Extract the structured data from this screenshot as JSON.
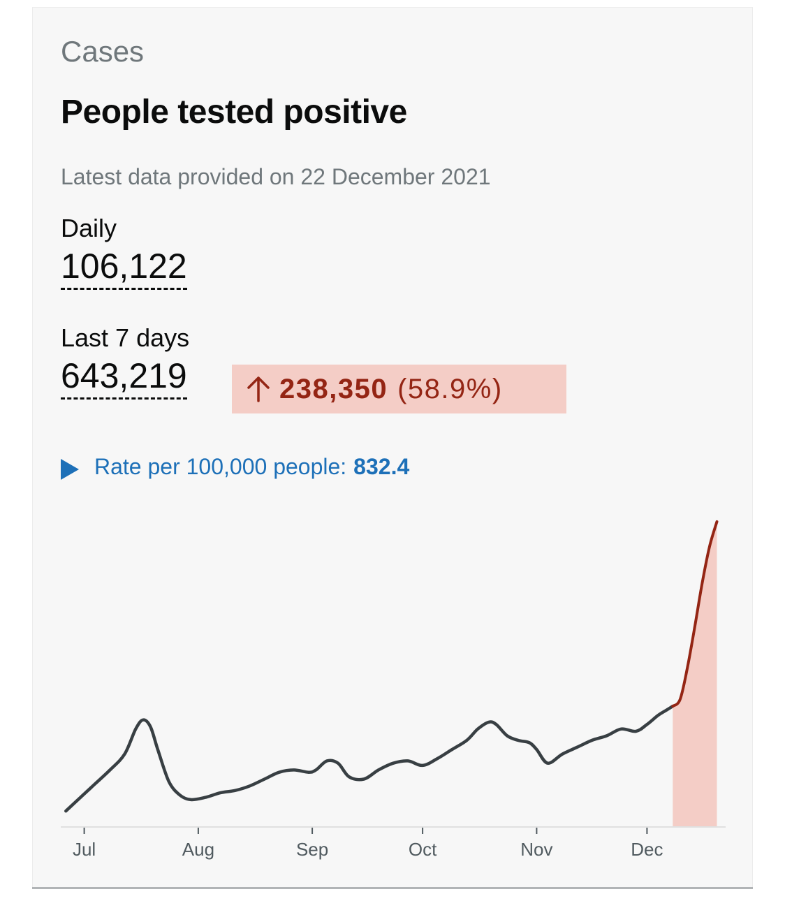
{
  "card": {
    "category": "Cases",
    "title": "People tested positive",
    "latest_update": "Latest data provided on 22 December 2021"
  },
  "metrics": {
    "daily": {
      "label": "Daily",
      "value": "106,122"
    },
    "last7": {
      "label": "Last 7 days",
      "value": "643,219"
    },
    "change": {
      "icon": "arrow-up-icon",
      "amount": "238,350",
      "percent": "(58.9%)",
      "direction": "up",
      "color": "#942514",
      "background": "#f4cdc6"
    }
  },
  "rate": {
    "icon": "disclosure-triangle-icon",
    "label": "Rate per 100,000 people:",
    "value": "832.4",
    "color": "#1d70b8"
  },
  "chart_data": {
    "type": "line",
    "title": "",
    "xlabel": "",
    "ylabel": "",
    "x_ticks": [
      "Jul",
      "Aug",
      "Sep",
      "Oct",
      "Nov",
      "Dec"
    ],
    "grid": false,
    "legend": "none",
    "series": [
      {
        "color": "#383f43",
        "highlight_color": "#942514",
        "highlight_fill": "#f4cdc6",
        "x": [
          "2021-06-26",
          "2021-06-30",
          "2021-07-04",
          "2021-07-08",
          "2021-07-12",
          "2021-07-15",
          "2021-07-17",
          "2021-07-19",
          "2021-07-21",
          "2021-07-24",
          "2021-07-27",
          "2021-07-30",
          "2021-08-03",
          "2021-08-07",
          "2021-08-11",
          "2021-08-15",
          "2021-08-19",
          "2021-08-23",
          "2021-08-27",
          "2021-08-31",
          "2021-09-02",
          "2021-09-05",
          "2021-09-08",
          "2021-09-11",
          "2021-09-15",
          "2021-09-19",
          "2021-09-23",
          "2021-09-27",
          "2021-10-01",
          "2021-10-05",
          "2021-10-09",
          "2021-10-13",
          "2021-10-16",
          "2021-10-19",
          "2021-10-21",
          "2021-10-24",
          "2021-10-27",
          "2021-10-30",
          "2021-11-01",
          "2021-11-04",
          "2021-11-08",
          "2021-11-12",
          "2021-11-16",
          "2021-11-20",
          "2021-11-24",
          "2021-11-28",
          "2021-12-01",
          "2021-12-04",
          "2021-12-06",
          "2021-12-08",
          "2021-12-10",
          "2021-12-12",
          "2021-12-14",
          "2021-12-16",
          "2021-12-18",
          "2021-12-20"
        ],
        "values": [
          7000,
          13000,
          19000,
          25000,
          32000,
          43000,
          47000,
          44000,
          34000,
          20000,
          14000,
          12000,
          13000,
          15000,
          16000,
          18000,
          21000,
          24000,
          25000,
          24000,
          25000,
          29000,
          28000,
          22000,
          21000,
          25000,
          28000,
          29000,
          27000,
          30000,
          34000,
          38000,
          43000,
          46000,
          45000,
          40000,
          38000,
          37000,
          34000,
          28000,
          32000,
          35000,
          38000,
          40000,
          43000,
          42000,
          45000,
          49000,
          51000,
          53000,
          56000,
          70000,
          88000,
          107000,
          123000,
          134000
        ],
        "highlight_from": "2021-12-08"
      }
    ],
    "xlim": [
      "2021-06-25",
      "2021-12-22"
    ],
    "ylim": [
      0,
      145000
    ]
  }
}
